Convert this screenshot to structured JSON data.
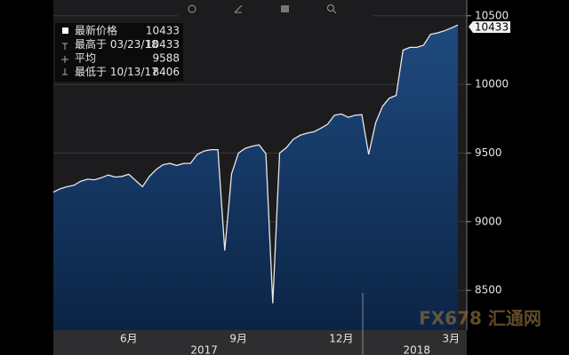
{
  "chart_data": {
    "type": "area",
    "toolbar": [
      "追踪",
      "注释",
      "新闻",
      "缩放"
    ],
    "categories": [
      null,
      null,
      null,
      null,
      null,
      null,
      null,
      null,
      null,
      null,
      null,
      "6月",
      null,
      null,
      null,
      null,
      null,
      null,
      null,
      null,
      null,
      null,
      null,
      null,
      null,
      null,
      null,
      "9月",
      null,
      null,
      null,
      null,
      null,
      null,
      null,
      null,
      null,
      null,
      null,
      null,
      null,
      null,
      "12月",
      null,
      null,
      null,
      null,
      null,
      null,
      null,
      null,
      null,
      null,
      null,
      null,
      null,
      null,
      null,
      "3月",
      null
    ],
    "year_categories": [
      null,
      null,
      null,
      null,
      null,
      null,
      null,
      null,
      null,
      null,
      null,
      null,
      null,
      null,
      null,
      null,
      null,
      null,
      null,
      null,
      null,
      null,
      "2017",
      null,
      null,
      null,
      null,
      null,
      null,
      null,
      null,
      null,
      null,
      null,
      null,
      null,
      null,
      null,
      null,
      null,
      null,
      null,
      null,
      null,
      null,
      null,
      null,
      null,
      null,
      null,
      null,
      null,
      null,
      "2018",
      null,
      null,
      null,
      null,
      null,
      null
    ],
    "series": [
      {
        "name": "最新价格",
        "color": "#e8e8e8",
        "fill_top": "#1f4a80",
        "fill_bottom": "#0b2445",
        "values": [
          9215,
          9240,
          9255,
          9265,
          9295,
          9310,
          9305,
          9320,
          9340,
          9325,
          9330,
          9345,
          9300,
          9255,
          9330,
          9380,
          9415,
          9425,
          9410,
          9425,
          9425,
          9490,
          9515,
          9525,
          9525,
          8790,
          9350,
          9500,
          9535,
          9550,
          9560,
          9495,
          8406,
          9500,
          9540,
          9600,
          9630,
          9645,
          9655,
          9680,
          9710,
          9775,
          9785,
          9760,
          9775,
          9780,
          9490,
          9720,
          9840,
          9900,
          9920,
          10250,
          10270,
          10270,
          10285,
          10365,
          10375,
          10390,
          10410,
          10433
        ]
      }
    ],
    "legend": [
      {
        "label": "最新价格",
        "value": 10433
      },
      {
        "label": "最高于 03/23/18",
        "value": 10433
      },
      {
        "label": "平均",
        "value": 9588
      },
      {
        "label": "最低于 10/13/17",
        "value": 8406
      }
    ],
    "price_tag": 10433,
    "ylim": [
      8210,
      10615
    ],
    "yticks": [
      8500,
      9000,
      9500,
      10000,
      10500
    ],
    "grid": true,
    "watermark": "FX678 汇通网"
  }
}
